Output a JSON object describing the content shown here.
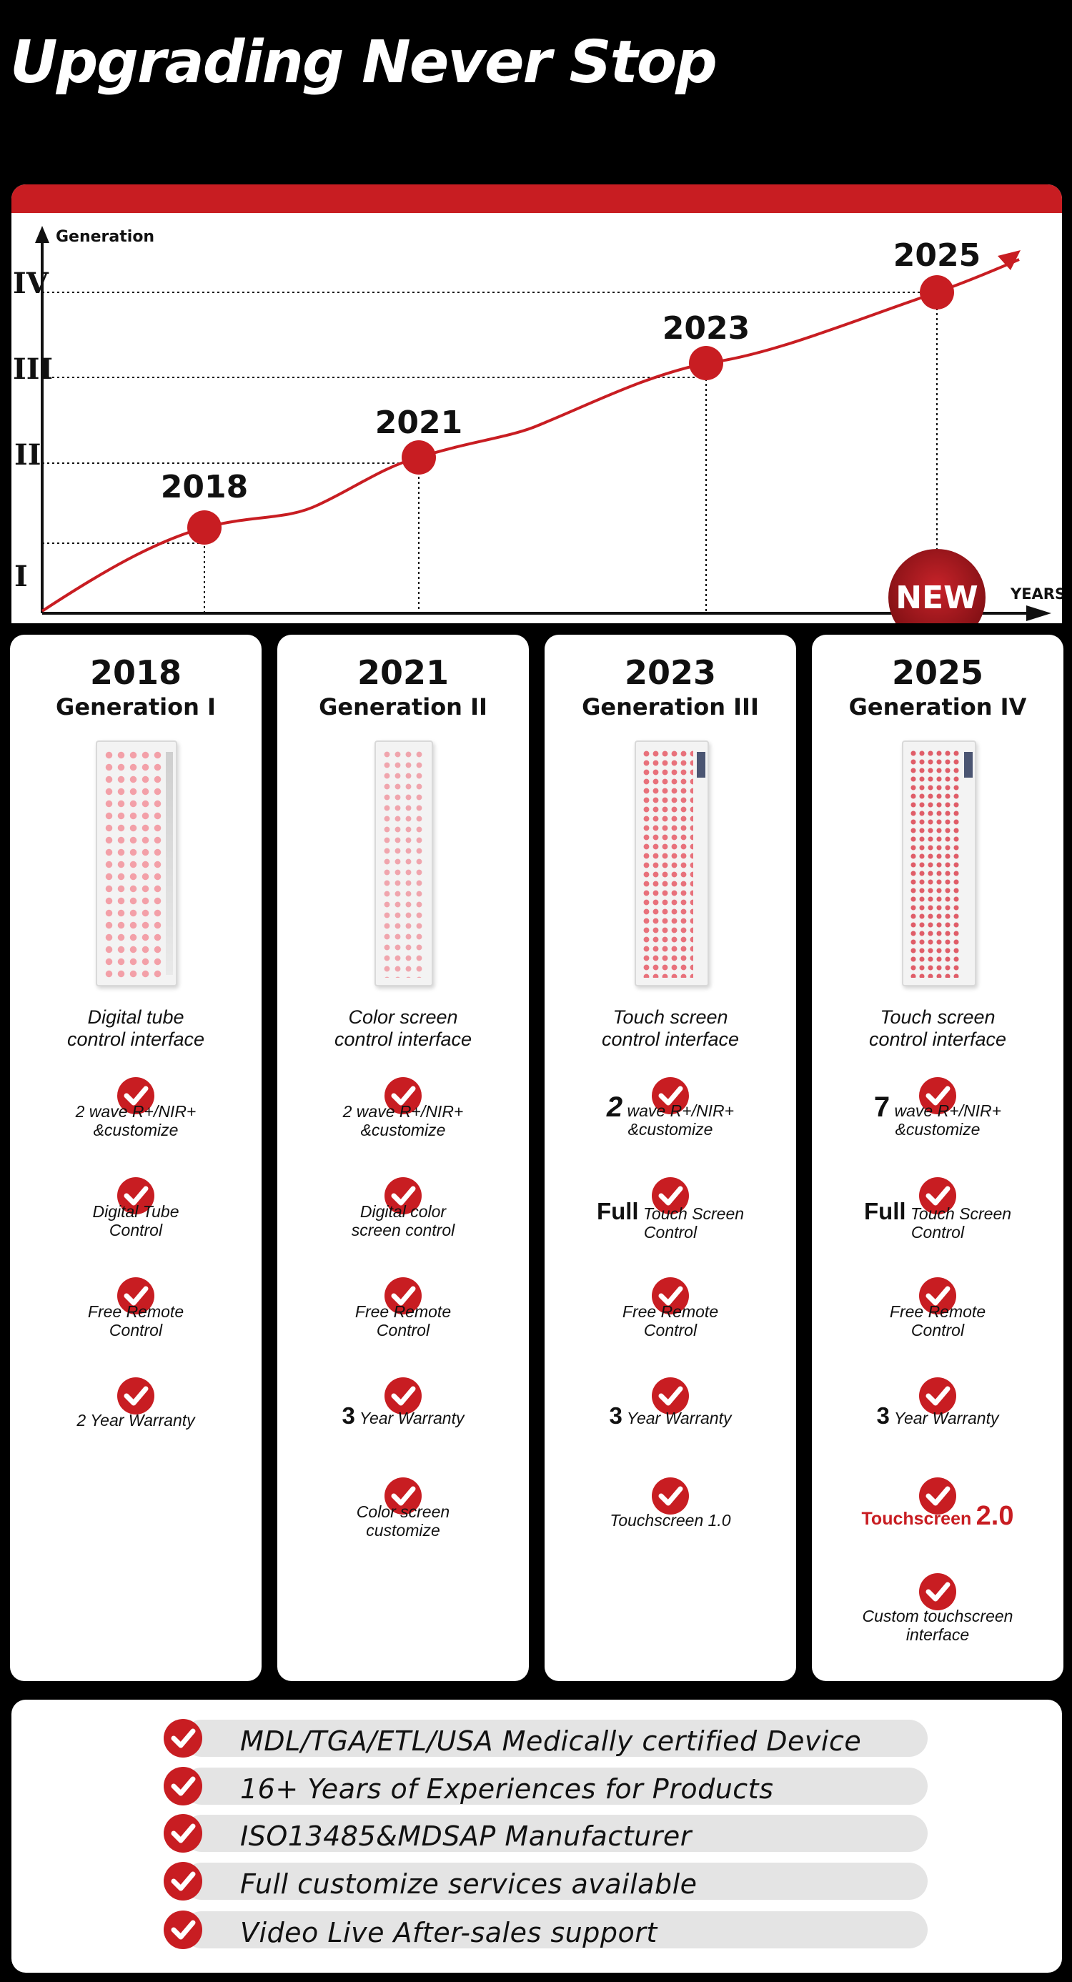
{
  "headline": "Upgrading Never Stop",
  "accent_color": "#c81d22",
  "timeline": {
    "y_axis_label": "Generation",
    "x_axis_label": "YEARS",
    "levels": [
      "I",
      "II",
      "III",
      "IV"
    ],
    "points": [
      {
        "year": "2018",
        "generation": "I"
      },
      {
        "year": "2021",
        "generation": "II"
      },
      {
        "year": "2023",
        "generation": "III"
      },
      {
        "year": "2025",
        "generation": "IV"
      }
    ],
    "new_badge": "NEW"
  },
  "generations": [
    {
      "year": "2018",
      "generation": "Generation I",
      "interface_line1": "Digital tube",
      "interface_line2": "control interface",
      "features": [
        {
          "lead": "",
          "line1": "2 wave R+/NIR+",
          "line2": "&customize"
        },
        {
          "lead": "",
          "line1": "Digital Tube",
          "line2": "Control"
        },
        {
          "lead": "",
          "line1": "Free Remote",
          "line2": "Control"
        },
        {
          "lead": "",
          "line1": "2 Year Warranty",
          "line2": ""
        }
      ]
    },
    {
      "year": "2021",
      "generation": "Generation II",
      "interface_line1": "Color screen",
      "interface_line2": "control interface",
      "features": [
        {
          "lead": "",
          "line1": "2 wave R+/NIR+",
          "line2": "&customize"
        },
        {
          "lead": "",
          "line1": "Digital color",
          "line2": "screen control"
        },
        {
          "lead": "",
          "line1": "Free Remote",
          "line2": "Control"
        },
        {
          "lead": "3",
          "line1": "Year Warranty",
          "line2": ""
        },
        {
          "lead": "",
          "line1": "Color screen",
          "line2": "customize"
        }
      ]
    },
    {
      "year": "2023",
      "generation": "Generation III",
      "interface_line1": "Touch screen",
      "interface_line2": "control interface",
      "features": [
        {
          "lead": "2",
          "line1": "wave R+/NIR+",
          "line2": "&customize"
        },
        {
          "lead": "Full",
          "line1": "Touch Screen",
          "line2": "Control"
        },
        {
          "lead": "",
          "line1": "Free Remote",
          "line2": "Control"
        },
        {
          "lead": "3",
          "line1": "Year Warranty",
          "line2": ""
        },
        {
          "lead": "",
          "line1": "Touchscreen 1.0",
          "line2": ""
        }
      ]
    },
    {
      "year": "2025",
      "generation": "Generation IV",
      "interface_line1": "Touch screen",
      "interface_line2": "control interface",
      "features": [
        {
          "lead": "7",
          "line1": "wave R+/NIR+",
          "line2": "&customize"
        },
        {
          "lead": "Full",
          "line1": "Touch Screen",
          "line2": "Control"
        },
        {
          "lead": "",
          "line1": "Free Remote",
          "line2": "Control"
        },
        {
          "lead": "3",
          "line1": "Year Warranty",
          "line2": ""
        },
        {
          "lead": "",
          "line1": "Touchscreen",
          "line2": "2.0"
        },
        {
          "lead": "",
          "line1": "Custom touchscreen",
          "line2": "interface"
        }
      ]
    }
  ],
  "certifications": [
    "MDL/TGA/ETL/USA Medically certified Device",
    "16+ Years of Experiences for Products",
    "ISO13485&MDSAP Manufacturer",
    "Full customize services available",
    "Video Live After-sales support"
  ]
}
